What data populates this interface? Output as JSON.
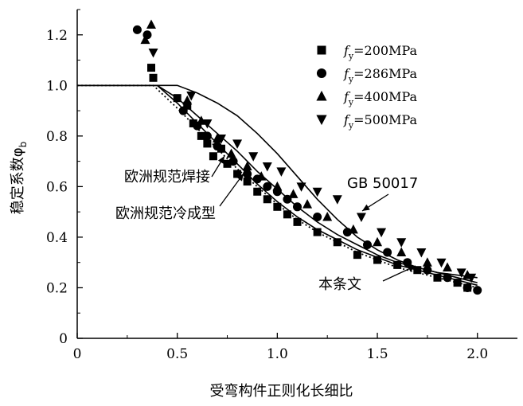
{
  "chart_data": {
    "type": "scatter",
    "xlabel": "受弯构件正则化长细比",
    "ylabel": "稳定系数φ",
    "ylabel_subscript": "b",
    "xlim": [
      0,
      2.2
    ],
    "ylim": [
      0,
      1.3
    ],
    "x_ticks": [
      0,
      0.5,
      1.0,
      1.5,
      2.0
    ],
    "x_tick_labels": [
      "0",
      "0.5",
      "1.0",
      "1.5",
      "2.0"
    ],
    "y_ticks": [
      0,
      0.2,
      0.4,
      0.6,
      0.8,
      1.0,
      1.2
    ],
    "y_tick_labels": [
      "0",
      "0.2",
      "0.4",
      "0.6",
      "0.8",
      "1.0",
      "1.2"
    ],
    "grid": false,
    "legend_position": "top-right",
    "series": [
      {
        "name_prefix": "f",
        "name_sub": "y",
        "name_suffix": "=200MPa",
        "marker": "square",
        "points": [
          [
            0.37,
            1.07
          ],
          [
            0.38,
            1.03
          ],
          [
            0.5,
            0.95
          ],
          [
            0.55,
            0.92
          ],
          [
            0.58,
            0.85
          ],
          [
            0.62,
            0.8
          ],
          [
            0.65,
            0.77
          ],
          [
            0.68,
            0.72
          ],
          [
            0.72,
            0.75
          ],
          [
            0.75,
            0.69
          ],
          [
            0.8,
            0.65
          ],
          [
            0.85,
            0.62
          ],
          [
            0.9,
            0.58
          ],
          [
            0.95,
            0.55
          ],
          [
            1.0,
            0.52
          ],
          [
            1.05,
            0.49
          ],
          [
            1.1,
            0.46
          ],
          [
            1.2,
            0.42
          ],
          [
            1.3,
            0.38
          ],
          [
            1.4,
            0.33
          ],
          [
            1.5,
            0.31
          ],
          [
            1.6,
            0.29
          ],
          [
            1.7,
            0.27
          ],
          [
            1.8,
            0.24
          ],
          [
            1.9,
            0.22
          ],
          [
            1.95,
            0.2
          ]
        ]
      },
      {
        "name_prefix": "f",
        "name_sub": "y",
        "name_suffix": "=286MPa",
        "marker": "circle",
        "points": [
          [
            0.3,
            1.22
          ],
          [
            0.35,
            1.2
          ],
          [
            0.53,
            0.9
          ],
          [
            0.6,
            0.84
          ],
          [
            0.65,
            0.8
          ],
          [
            0.7,
            0.76
          ],
          [
            0.78,
            0.7
          ],
          [
            0.85,
            0.65
          ],
          [
            0.9,
            0.63
          ],
          [
            0.95,
            0.6
          ],
          [
            1.0,
            0.58
          ],
          [
            1.05,
            0.55
          ],
          [
            1.1,
            0.52
          ],
          [
            1.2,
            0.48
          ],
          [
            1.35,
            0.42
          ],
          [
            1.45,
            0.37
          ],
          [
            1.55,
            0.34
          ],
          [
            1.65,
            0.3
          ],
          [
            1.75,
            0.27
          ],
          [
            1.85,
            0.24
          ],
          [
            1.95,
            0.2
          ],
          [
            2.0,
            0.19
          ]
        ]
      },
      {
        "name_prefix": "f",
        "name_sub": "y",
        "name_suffix": "=400MPa",
        "marker": "triangle-up",
        "points": [
          [
            0.34,
            1.18
          ],
          [
            0.37,
            1.24
          ],
          [
            0.55,
            0.94
          ],
          [
            0.62,
            0.86
          ],
          [
            0.7,
            0.79
          ],
          [
            0.77,
            0.73
          ],
          [
            0.85,
            0.68
          ],
          [
            0.92,
            0.64
          ],
          [
            1.0,
            0.6
          ],
          [
            1.08,
            0.57
          ],
          [
            1.15,
            0.53
          ],
          [
            1.25,
            0.48
          ],
          [
            1.38,
            0.43
          ],
          [
            1.5,
            0.38
          ],
          [
            1.62,
            0.34
          ],
          [
            1.75,
            0.3
          ],
          [
            1.85,
            0.28
          ],
          [
            1.95,
            0.25
          ]
        ]
      },
      {
        "name_prefix": "f",
        "name_sub": "y",
        "name_suffix": "=500MPa",
        "marker": "triangle-down",
        "points": [
          [
            0.38,
            1.13
          ],
          [
            0.57,
            0.96
          ],
          [
            0.65,
            0.85
          ],
          [
            0.72,
            0.79
          ],
          [
            0.8,
            0.77
          ],
          [
            0.88,
            0.72
          ],
          [
            0.95,
            0.68
          ],
          [
            1.02,
            0.66
          ],
          [
            1.12,
            0.6
          ],
          [
            1.2,
            0.58
          ],
          [
            1.3,
            0.55
          ],
          [
            1.42,
            0.48
          ],
          [
            1.52,
            0.42
          ],
          [
            1.62,
            0.38
          ],
          [
            1.72,
            0.34
          ],
          [
            1.82,
            0.3
          ],
          [
            1.92,
            0.26
          ],
          [
            1.97,
            0.24
          ]
        ]
      }
    ],
    "curves": [
      {
        "label": "GB 50017",
        "style": "solid",
        "points": [
          [
            0,
            1.0
          ],
          [
            0.5,
            1.0
          ],
          [
            0.6,
            0.97
          ],
          [
            0.7,
            0.93
          ],
          [
            0.8,
            0.88
          ],
          [
            0.9,
            0.81
          ],
          [
            1.0,
            0.73
          ],
          [
            1.1,
            0.64
          ],
          [
            1.2,
            0.55
          ],
          [
            1.3,
            0.47
          ],
          [
            1.4,
            0.4
          ],
          [
            1.5,
            0.35
          ],
          [
            1.6,
            0.31
          ],
          [
            1.7,
            0.28
          ],
          [
            1.8,
            0.26
          ],
          [
            1.9,
            0.25
          ],
          [
            2.0,
            0.24
          ]
        ]
      },
      {
        "label": "欧洲规范焊接",
        "style": "solid",
        "points": [
          [
            0,
            1.0
          ],
          [
            0.4,
            1.0
          ],
          [
            0.5,
            0.95
          ],
          [
            0.6,
            0.88
          ],
          [
            0.7,
            0.81
          ],
          [
            0.8,
            0.74
          ],
          [
            0.9,
            0.66
          ],
          [
            1.0,
            0.59
          ],
          [
            1.1,
            0.52
          ],
          [
            1.2,
            0.46
          ],
          [
            1.3,
            0.41
          ],
          [
            1.4,
            0.37
          ],
          [
            1.5,
            0.33
          ],
          [
            1.6,
            0.3
          ],
          [
            1.7,
            0.28
          ],
          [
            1.8,
            0.26
          ],
          [
            1.9,
            0.24
          ],
          [
            2.0,
            0.22
          ]
        ]
      },
      {
        "label": "欧洲规范冷成型",
        "style": "solid",
        "points": [
          [
            0,
            1.0
          ],
          [
            0.4,
            1.0
          ],
          [
            0.5,
            0.93
          ],
          [
            0.6,
            0.85
          ],
          [
            0.7,
            0.77
          ],
          [
            0.8,
            0.69
          ],
          [
            0.9,
            0.61
          ],
          [
            1.0,
            0.54
          ],
          [
            1.1,
            0.48
          ],
          [
            1.2,
            0.43
          ],
          [
            1.3,
            0.39
          ],
          [
            1.4,
            0.35
          ],
          [
            1.5,
            0.32
          ],
          [
            1.6,
            0.29
          ],
          [
            1.7,
            0.27
          ],
          [
            1.8,
            0.25
          ],
          [
            1.9,
            0.23
          ],
          [
            2.0,
            0.21
          ]
        ]
      },
      {
        "label": "本条文",
        "style": "dotted",
        "points": [
          [
            0,
            1.0
          ],
          [
            0.38,
            1.0
          ],
          [
            0.5,
            0.91
          ],
          [
            0.6,
            0.83
          ],
          [
            0.7,
            0.75
          ],
          [
            0.8,
            0.67
          ],
          [
            0.9,
            0.6
          ],
          [
            1.0,
            0.53
          ],
          [
            1.1,
            0.47
          ],
          [
            1.2,
            0.42
          ],
          [
            1.3,
            0.38
          ],
          [
            1.4,
            0.34
          ],
          [
            1.5,
            0.31
          ],
          [
            1.6,
            0.28
          ],
          [
            1.7,
            0.26
          ],
          [
            1.8,
            0.24
          ],
          [
            1.9,
            0.22
          ],
          [
            2.0,
            0.2
          ]
        ]
      }
    ]
  }
}
